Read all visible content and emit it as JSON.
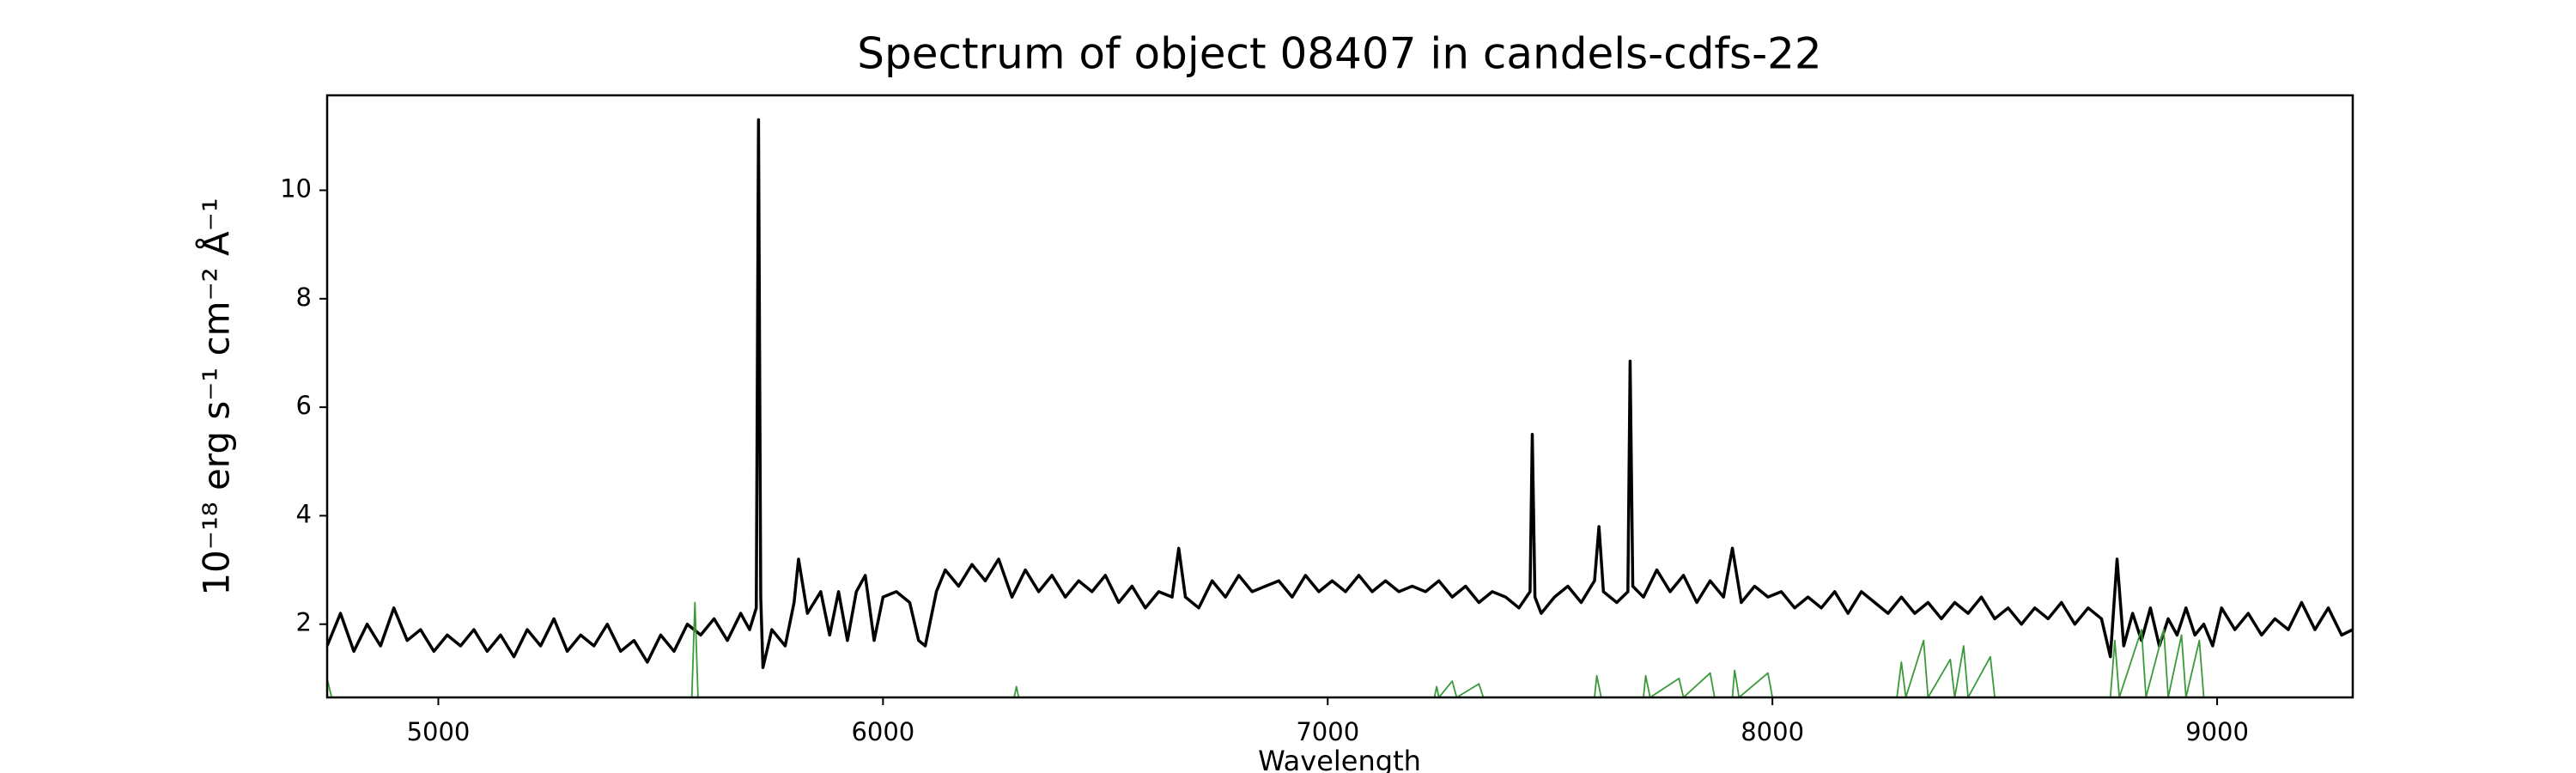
{
  "chart_data": {
    "type": "line",
    "title": "Spectrum of object 08407 in candels-cdfs-22",
    "xlabel": "Wavelength",
    "ylabel": "10⁻¹⁸ erg s⁻¹ cm⁻² Å⁻¹",
    "xlim": [
      4750,
      9305
    ],
    "ylim": [
      0.65,
      11.75
    ],
    "xticks": [
      5000,
      6000,
      7000,
      8000,
      9000
    ],
    "yticks": [
      2,
      4,
      6,
      8,
      10
    ],
    "grid": false,
    "series": [
      {
        "color": "#000000",
        "x": [
          4750,
          4780,
          4810,
          4840,
          4870,
          4900,
          4930,
          4960,
          4990,
          5020,
          5050,
          5080,
          5110,
          5140,
          5170,
          5200,
          5230,
          5260,
          5290,
          5320,
          5350,
          5380,
          5410,
          5440,
          5470,
          5500,
          5530,
          5560,
          5590,
          5620,
          5650,
          5680,
          5700,
          5715,
          5720,
          5725,
          5730,
          5750,
          5780,
          5800,
          5810,
          5830,
          5860,
          5880,
          5900,
          5920,
          5940,
          5960,
          5980,
          6000,
          6030,
          6060,
          6080,
          6095,
          6120,
          6140,
          6170,
          6200,
          6230,
          6260,
          6290,
          6320,
          6350,
          6380,
          6410,
          6440,
          6470,
          6500,
          6530,
          6560,
          6590,
          6620,
          6650,
          6665,
          6680,
          6710,
          6740,
          6770,
          6800,
          6830,
          6860,
          6890,
          6920,
          6950,
          6980,
          7010,
          7040,
          7070,
          7100,
          7130,
          7160,
          7190,
          7220,
          7250,
          7280,
          7310,
          7340,
          7370,
          7400,
          7430,
          7455,
          7460,
          7466,
          7480,
          7510,
          7540,
          7570,
          7600,
          7610,
          7620,
          7650,
          7675,
          7680,
          7686,
          7710,
          7740,
          7770,
          7800,
          7830,
          7860,
          7890,
          7910,
          7930,
          7960,
          7990,
          8020,
          8050,
          8080,
          8110,
          8140,
          8170,
          8200,
          8230,
          8260,
          8290,
          8320,
          8350,
          8380,
          8410,
          8440,
          8470,
          8500,
          8530,
          8560,
          8590,
          8620,
          8650,
          8680,
          8710,
          8740,
          8760,
          8775,
          8790,
          8810,
          8830,
          8850,
          8870,
          8890,
          8910,
          8930,
          8950,
          8970,
          8990,
          9010,
          9040,
          9070,
          9100,
          9130,
          9160,
          9190,
          9220,
          9250,
          9280,
          9305
        ],
        "values": [
          1.6,
          2.2,
          1.5,
          2.0,
          1.6,
          2.3,
          1.7,
          1.9,
          1.5,
          1.8,
          1.6,
          1.9,
          1.5,
          1.8,
          1.4,
          1.9,
          1.6,
          2.1,
          1.5,
          1.8,
          1.6,
          2.0,
          1.5,
          1.7,
          1.3,
          1.8,
          1.5,
          2.0,
          1.8,
          2.1,
          1.7,
          2.2,
          1.9,
          2.3,
          11.3,
          2.5,
          1.2,
          1.9,
          1.6,
          2.4,
          3.2,
          2.2,
          2.6,
          1.8,
          2.6,
          1.7,
          2.6,
          2.9,
          1.7,
          2.5,
          2.6,
          2.4,
          1.7,
          1.6,
          2.6,
          3.0,
          2.7,
          3.1,
          2.8,
          3.2,
          2.5,
          3.0,
          2.6,
          2.9,
          2.5,
          2.8,
          2.6,
          2.9,
          2.4,
          2.7,
          2.3,
          2.6,
          2.5,
          3.4,
          2.5,
          2.3,
          2.8,
          2.5,
          2.9,
          2.6,
          2.7,
          2.8,
          2.5,
          2.9,
          2.6,
          2.8,
          2.6,
          2.9,
          2.6,
          2.8,
          2.6,
          2.7,
          2.6,
          2.8,
          2.5,
          2.7,
          2.4,
          2.6,
          2.5,
          2.3,
          2.6,
          5.5,
          2.5,
          2.2,
          2.5,
          2.7,
          2.4,
          2.8,
          3.8,
          2.6,
          2.4,
          2.6,
          6.85,
          2.7,
          2.5,
          3.0,
          2.6,
          2.9,
          2.4,
          2.8,
          2.5,
          3.4,
          2.4,
          2.7,
          2.5,
          2.6,
          2.3,
          2.5,
          2.3,
          2.6,
          2.2,
          2.6,
          2.4,
          2.2,
          2.5,
          2.2,
          2.4,
          2.1,
          2.4,
          2.2,
          2.5,
          2.1,
          2.3,
          2.0,
          2.3,
          2.1,
          2.4,
          2.0,
          2.3,
          2.1,
          1.4,
          3.2,
          1.6,
          2.2,
          1.7,
          2.3,
          1.6,
          2.1,
          1.8,
          2.3,
          1.8,
          2.0,
          1.6,
          2.3,
          1.9,
          2.2,
          1.8,
          2.1,
          1.9,
          2.4,
          1.9,
          2.3,
          1.8,
          1.9
        ]
      },
      {
        "color": "#3a9a3a",
        "x": [
          4750,
          4760,
          5570,
          5577,
          5584,
          6295,
          6300,
          6305,
          7240,
          7245,
          7250,
          7280,
          7290,
          7340,
          7350,
          7600,
          7605,
          7615,
          7710,
          7715,
          7725,
          7790,
          7800,
          7860,
          7870,
          7910,
          7915,
          7925,
          7990,
          8000,
          8280,
          8290,
          8300,
          8340,
          8350,
          8400,
          8410,
          8430,
          8440,
          8490,
          8500,
          8760,
          8770,
          8780,
          8830,
          8840,
          8880,
          8890,
          8920,
          8930,
          8960,
          8970,
          9300
        ],
        "values": [
          1.0,
          0.65,
          0.65,
          2.4,
          0.65,
          0.65,
          0.85,
          0.65,
          0.65,
          0.85,
          0.65,
          0.95,
          0.65,
          0.9,
          0.65,
          0.65,
          1.05,
          0.65,
          0.65,
          1.05,
          0.65,
          1.0,
          0.65,
          1.1,
          0.65,
          0.65,
          1.15,
          0.65,
          1.1,
          0.65,
          0.65,
          1.3,
          0.65,
          1.7,
          0.65,
          1.35,
          0.65,
          1.6,
          0.65,
          1.4,
          0.65,
          0.65,
          1.7,
          0.65,
          1.9,
          0.65,
          1.9,
          0.65,
          1.8,
          0.65,
          1.7,
          0.65,
          0.65
        ]
      }
    ]
  }
}
